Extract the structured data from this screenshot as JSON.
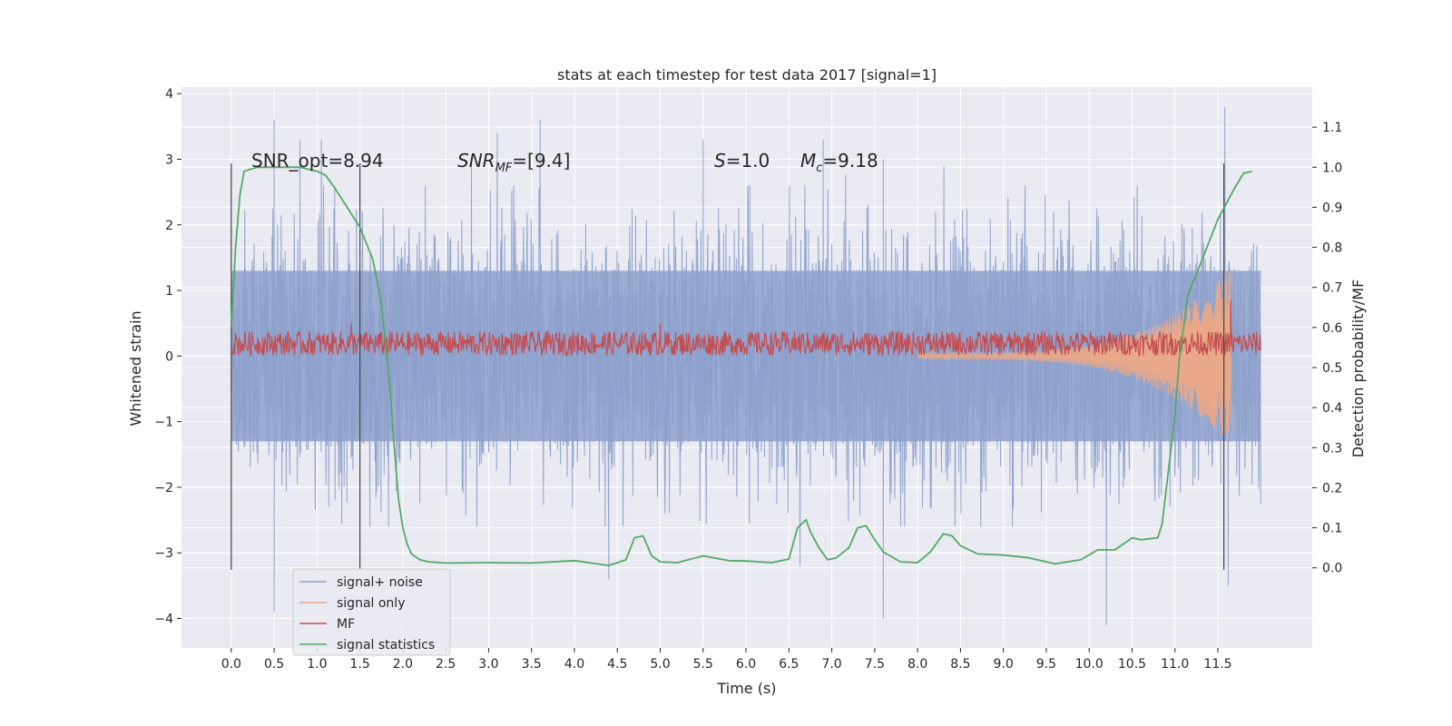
{
  "chart_data": {
    "type": "line",
    "title": "stats at each timestep for test data 2017 [signal=1]",
    "xlabel": "Time (s)",
    "ylabel": "Whitened strain",
    "ylabel_right": "Detection probability/MF",
    "xlim": [
      -0.58,
      12.6
    ],
    "ylim": [
      -4.45,
      4.1
    ],
    "ylim_right": [
      -0.2,
      1.2
    ],
    "x_ticks": [
      "0.0",
      "0.5",
      "1.0",
      "1.5",
      "2.0",
      "2.5",
      "3.0",
      "3.5",
      "4.0",
      "4.5",
      "5.0",
      "5.5",
      "6.0",
      "6.5",
      "7.0",
      "7.5",
      "8.0",
      "8.5",
      "9.0",
      "9.5",
      "10.0",
      "10.5",
      "11.0",
      "11.5"
    ],
    "y_ticks": [
      "−4",
      "−3",
      "−2",
      "−1",
      "0",
      "1",
      "2",
      "3",
      "4"
    ],
    "y_ticks_right": [
      "0.0",
      "0.1",
      "0.2",
      "0.3",
      "0.4",
      "0.5",
      "0.6",
      "0.7",
      "0.8",
      "0.9",
      "1.0",
      "1.1"
    ],
    "grid": true,
    "legend_position": "bottom-left",
    "annotations": {
      "snr_opt": "SNR_opt=8.94",
      "snr_mf_main": "SNR",
      "snr_mf_sub": "MF",
      "snr_mf_rest": "=[9.4]",
      "s_main": "S",
      "s_rest": "=1.0",
      "mc_main": "M",
      "mc_sub": "c",
      "mc_rest": "=9.18"
    },
    "vertical_markers_x": [
      0.0,
      1.5,
      11.57
    ],
    "series": [
      {
        "name": "signal+ noise",
        "color": "#8da0cb",
        "kind": "noise band",
        "x_range": [
          0.0,
          12.0
        ],
        "envelope_typical": [
          -1.3,
          1.3
        ],
        "spikes_high": [
          [
            0.5,
            3.6
          ],
          [
            0.8,
            3.3
          ],
          [
            1.05,
            3.3
          ],
          [
            2.8,
            3.0
          ],
          [
            3.1,
            3.4
          ],
          [
            3.6,
            3.6
          ],
          [
            5.5,
            3.3
          ],
          [
            6.9,
            3.3
          ],
          [
            7.6,
            3.0
          ],
          [
            11.58,
            3.8
          ]
        ],
        "spikes_low": [
          [
            0.5,
            -3.9
          ],
          [
            4.4,
            -3.4
          ],
          [
            7.6,
            -4.0
          ],
          [
            10.2,
            -4.1
          ],
          [
            11.62,
            -3.5
          ]
        ]
      },
      {
        "name": "signal only",
        "color": "#e8a889",
        "kind": "chirp",
        "x_range": [
          8.0,
          11.65
        ],
        "amplitude_end": 1.3
      },
      {
        "name": "MF",
        "color": "#c44e52",
        "kind": "band",
        "axis": "right",
        "x_range": [
          0.0,
          12.0
        ],
        "band": [
          0.53,
          0.59
        ],
        "peaks": [
          [
            1.4,
            0.61
          ],
          [
            5.0,
            0.61
          ],
          [
            11.65,
            0.67
          ]
        ]
      },
      {
        "name": "signal statistics",
        "color": "#55a868",
        "kind": "line",
        "axis": "right",
        "x": [
          0.0,
          0.05,
          0.1,
          0.15,
          0.3,
          0.5,
          0.8,
          1.0,
          1.1,
          1.2,
          1.35,
          1.5,
          1.65,
          1.75,
          1.85,
          1.9,
          1.95,
          2.0,
          2.05,
          2.1,
          2.2,
          2.3,
          2.5,
          3.0,
          3.5,
          4.0,
          4.4,
          4.6,
          4.7,
          4.8,
          4.9,
          5.0,
          5.2,
          5.5,
          5.8,
          6.0,
          6.3,
          6.5,
          6.6,
          6.7,
          6.75,
          6.85,
          6.95,
          7.05,
          7.2,
          7.3,
          7.4,
          7.5,
          7.6,
          7.8,
          8.0,
          8.15,
          8.3,
          8.4,
          8.5,
          8.7,
          9.0,
          9.3,
          9.6,
          9.9,
          10.1,
          10.3,
          10.5,
          10.6,
          10.8,
          10.85,
          10.9,
          11.0,
          11.05,
          11.1,
          11.15,
          11.3,
          11.5,
          11.7,
          11.8,
          11.9
        ],
        "y": [
          0.6,
          0.8,
          0.93,
          0.99,
          1.0,
          1.0,
          1.0,
          0.99,
          0.98,
          0.95,
          0.9,
          0.85,
          0.77,
          0.66,
          0.45,
          0.3,
          0.17,
          0.1,
          0.06,
          0.035,
          0.02,
          0.015,
          0.012,
          0.013,
          0.012,
          0.018,
          0.006,
          0.02,
          0.075,
          0.08,
          0.03,
          0.015,
          0.013,
          0.03,
          0.018,
          0.017,
          0.013,
          0.022,
          0.1,
          0.12,
          0.09,
          0.05,
          0.02,
          0.025,
          0.05,
          0.1,
          0.105,
          0.07,
          0.04,
          0.015,
          0.013,
          0.04,
          0.085,
          0.08,
          0.055,
          0.035,
          0.032,
          0.025,
          0.01,
          0.02,
          0.045,
          0.045,
          0.075,
          0.07,
          0.075,
          0.11,
          0.2,
          0.38,
          0.52,
          0.6,
          0.68,
          0.76,
          0.87,
          0.95,
          0.985,
          0.99
        ]
      }
    ]
  }
}
